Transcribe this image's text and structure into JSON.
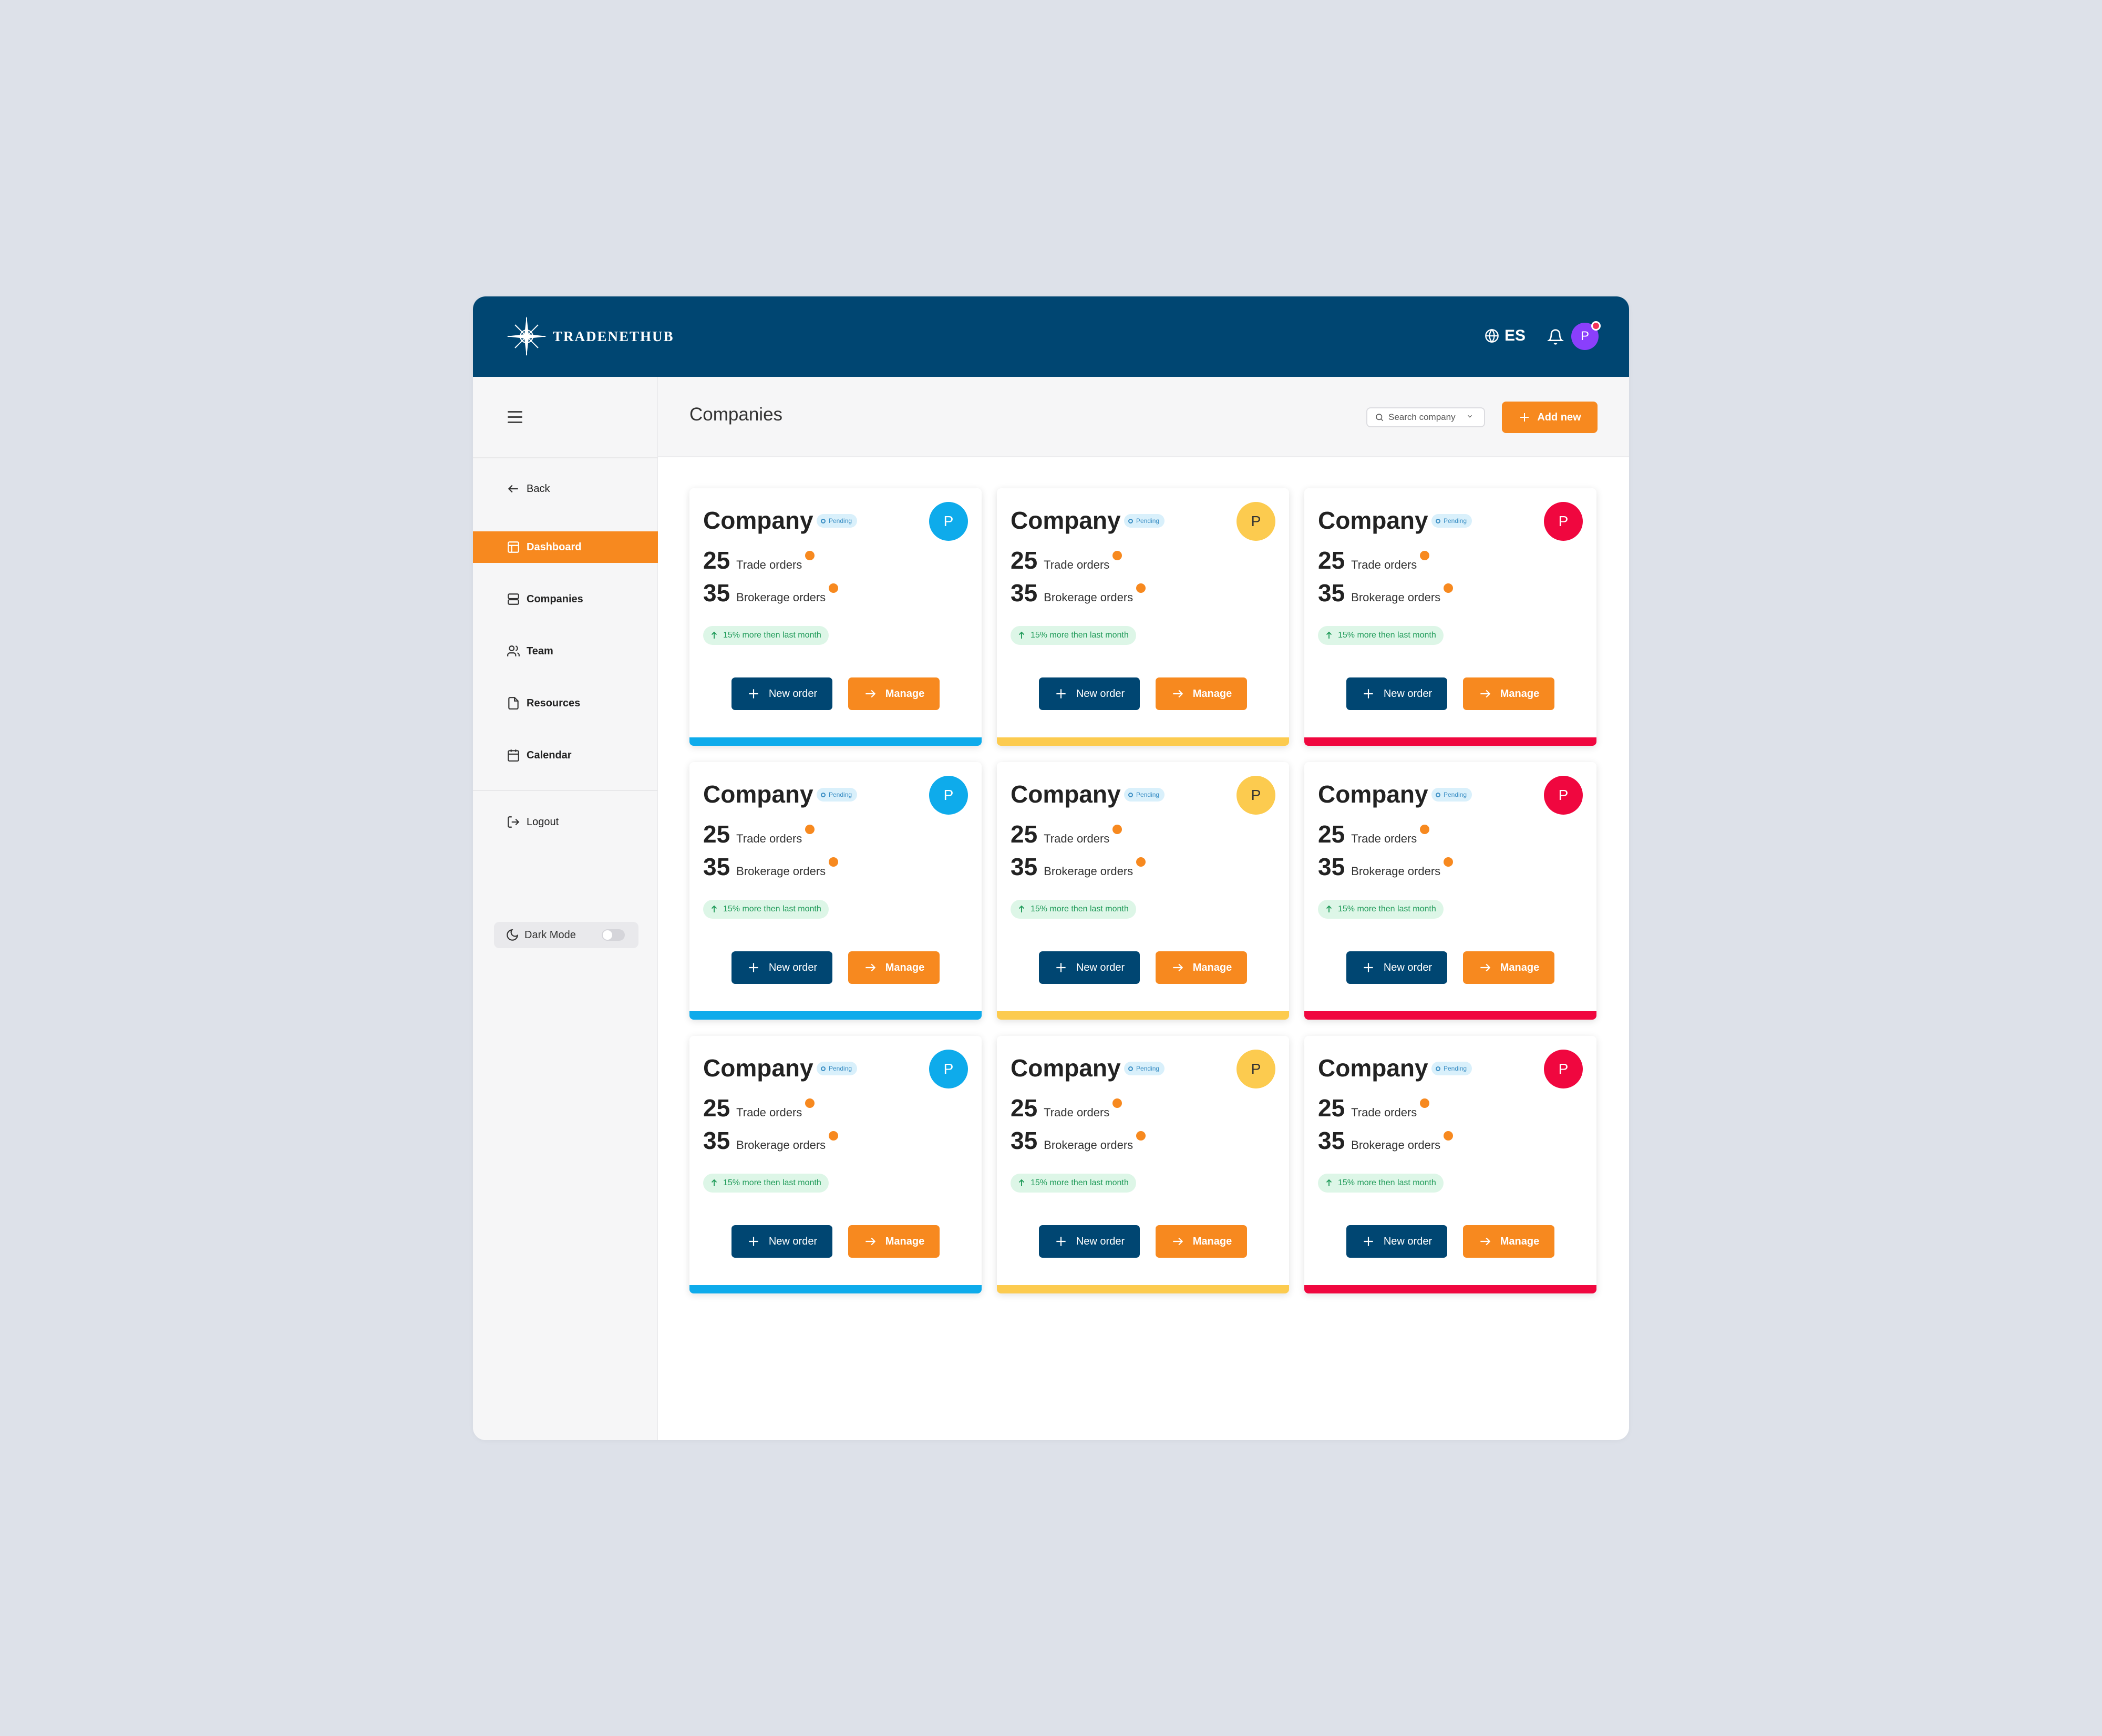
{
  "app": {
    "logo_text": "TRADENETHUB",
    "language": "ES",
    "user_initial": "P"
  },
  "sidebar": {
    "items": [
      {
        "label": "Back",
        "icon": "arrow-left-icon"
      },
      {
        "label": "Dashboard",
        "icon": "layout-icon",
        "active": true
      },
      {
        "label": "Companies",
        "icon": "server-icon"
      },
      {
        "label": "Team",
        "icon": "users-icon"
      },
      {
        "label": "Resources",
        "icon": "file-icon"
      },
      {
        "label": "Calendar",
        "icon": "calendar-icon"
      },
      {
        "label": "Logout",
        "icon": "logout-icon"
      }
    ],
    "dark_mode_label": "Dark Mode",
    "dark_mode_on": false
  },
  "header": {
    "title": "Companies",
    "search_placeholder": "Search company",
    "add_label": "Add new"
  },
  "card_text": {
    "name": "Company",
    "status": "Pending",
    "trade_value": "25",
    "trade_label": "Trade orders",
    "brokerage_value": "35",
    "brokerage_label": "Brokerage orders",
    "growth": "15% more then last month",
    "new_order_label": "New order",
    "manage_label": "Manage",
    "avatar_initial": "P"
  },
  "card_colors": [
    "#0eabeb",
    "#fccb4f",
    "#f0073f"
  ],
  "colors": {
    "brand_navy": "#004672",
    "accent_orange": "#f7891f",
    "avatar_purple": "#8a3ffc"
  }
}
